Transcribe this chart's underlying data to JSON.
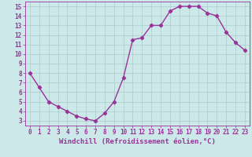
{
  "x": [
    0,
    1,
    2,
    3,
    4,
    5,
    6,
    7,
    8,
    9,
    10,
    11,
    12,
    13,
    14,
    15,
    16,
    17,
    18,
    19,
    20,
    21,
    22,
    23
  ],
  "y": [
    8.0,
    6.5,
    5.0,
    4.5,
    4.0,
    3.5,
    3.2,
    3.0,
    3.8,
    5.0,
    7.5,
    11.5,
    11.7,
    13.0,
    13.0,
    14.5,
    15.0,
    15.0,
    15.0,
    14.3,
    14.0,
    12.3,
    11.2,
    10.4
  ],
  "line_color": "#993399",
  "marker": "D",
  "marker_size": 2.2,
  "line_width": 1.0,
  "bg_color": "#cce8e8",
  "grid_color": "#aacccc",
  "xlabel": "Windchill (Refroidissement éolien,°C)",
  "xlabel_fontsize": 6.5,
  "xlim": [
    -0.5,
    23.5
  ],
  "ylim": [
    2.5,
    15.5
  ],
  "yticks": [
    3,
    4,
    5,
    6,
    7,
    8,
    9,
    10,
    11,
    12,
    13,
    14,
    15
  ],
  "xticks": [
    0,
    1,
    2,
    3,
    4,
    5,
    6,
    7,
    8,
    9,
    10,
    11,
    12,
    13,
    14,
    15,
    16,
    17,
    18,
    19,
    20,
    21,
    22,
    23
  ],
  "tick_fontsize": 5.5,
  "tick_color": "#993399",
  "axis_color": "#993399"
}
